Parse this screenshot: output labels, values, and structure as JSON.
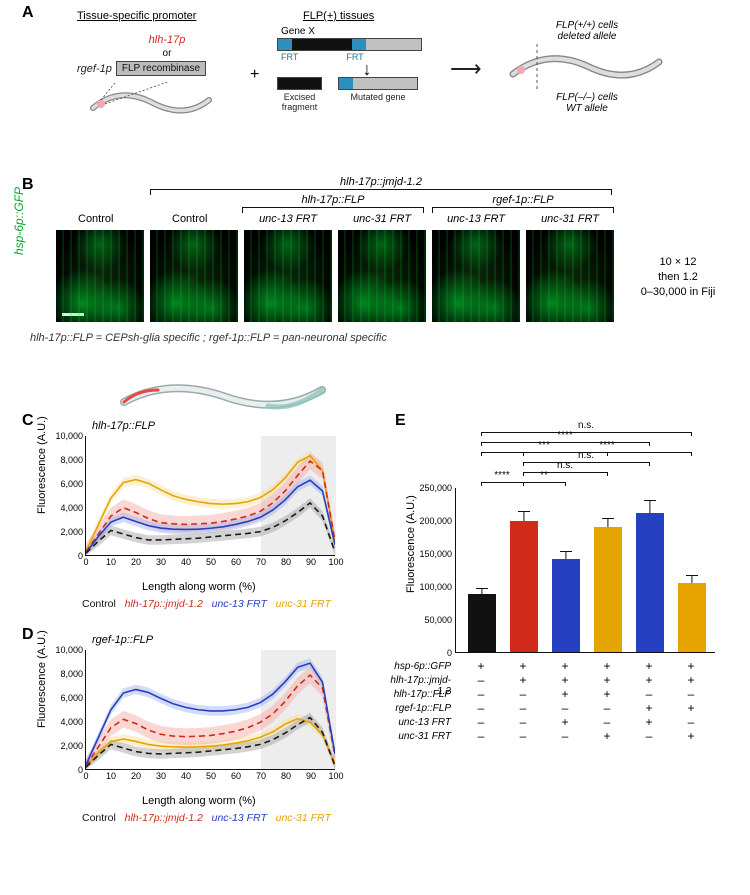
{
  "labels": {
    "A": "A",
    "B": "B",
    "C": "C",
    "D": "D",
    "E": "E"
  },
  "A": {
    "col1_heading": "Tissue-specific promoter",
    "hlh17p": "hlh-17p",
    "or": "or",
    "rgef1p": "rgef-1p",
    "flp_box": "FLP recombinase",
    "plus": "+",
    "col2_heading": "FLP(+) tissues",
    "geneX": "Gene X",
    "frt": "FRT",
    "excised": "Excised\nfragment",
    "mutated": "Mutated gene",
    "arrow": "→",
    "right_top": "FLP(+/+) cells\ndeleted allele",
    "right_bot": "FLP(–/–) cells\nWT allele"
  },
  "B": {
    "top_right_bracket_label": "hlh-17p::jmjd-1.2",
    "mid_left_bracket_label": "hlh-17p::FLP",
    "mid_right_bracket_label": "rgef-1p::FLP",
    "cols": [
      "Control",
      "Control",
      "unc-13 FRT",
      "unc-31 FRT",
      "unc-13 FRT",
      "unc-31 FRT"
    ],
    "left_green": "hsp-6p::GFP",
    "right_note_l1": "10 × 12",
    "right_note_l2": "then 1.2",
    "right_note_l3": "0–30,000 in Fiji",
    "footnote": "hlh-17p::FLP = CEPsh-glia specific  ;  rgef-1p::FLP = pan-neuronal specific"
  },
  "C": {
    "title": "hlh-17p::FLP",
    "y_label": "Fluorescence (A.U.)",
    "x_label": "Length along worm (%)",
    "ylim": [
      0,
      10000
    ],
    "ytick_step": 2000,
    "xlim": [
      0,
      100
    ],
    "xtick_step": 10,
    "shade_x": [
      70,
      100
    ],
    "legend": [
      "Control",
      "hlh-17p::jmjd-1.2",
      "unc-13 FRT",
      "unc-31 FRT"
    ],
    "series": {
      "control": {
        "color": "#1a1a1a",
        "dash": "6,4",
        "band": "#9e9e9e",
        "y": [
          200,
          1200,
          2100,
          1800,
          1500,
          1300,
          1300,
          1350,
          1400,
          1450,
          1550,
          1650,
          1750,
          1850,
          2000,
          2350,
          2900,
          3600,
          4400,
          3300,
          300
        ]
      },
      "hlh": {
        "color": "#d12a1a",
        "dash": "6,4",
        "band": "#f3a69e",
        "y": [
          300,
          1800,
          3300,
          4000,
          3600,
          3100,
          2750,
          2650,
          2600,
          2650,
          2700,
          2850,
          3050,
          3300,
          3700,
          4400,
          5400,
          6700,
          7900,
          7100,
          1200
        ]
      },
      "u13": {
        "color": "#2540c0",
        "dash": "",
        "band": "#9fb0ea",
        "y": [
          250,
          1600,
          2800,
          3200,
          2850,
          2500,
          2300,
          2200,
          2180,
          2200,
          2280,
          2400,
          2600,
          2850,
          3200,
          3800,
          4650,
          5750,
          6300,
          5400,
          900
        ]
      },
      "u31": {
        "color": "#e6a400",
        "dash": "",
        "band": "#f7dd99",
        "y": [
          350,
          2600,
          4800,
          6100,
          6350,
          6050,
          5500,
          5000,
          4700,
          4500,
          4350,
          4300,
          4350,
          4500,
          4850,
          5500,
          6500,
          7800,
          8350,
          7100,
          1200
        ]
      }
    }
  },
  "D": {
    "title": "rgef-1p::FLP",
    "y_label": "Fluorescence (A.U.)",
    "x_label": "Length along worm (%)",
    "ylim": [
      0,
      10000
    ],
    "ytick_step": 2000,
    "xlim": [
      0,
      100
    ],
    "xtick_step": 10,
    "shade_x": [
      70,
      100
    ],
    "legend": [
      "Control",
      "hlh-17p::jmjd-1.2",
      "unc-13 FRT",
      "unc-31 FRT"
    ],
    "series": {
      "control": {
        "color": "#1a1a1a",
        "dash": "6,4",
        "band": "#9e9e9e",
        "y": [
          200,
          1200,
          2100,
          1800,
          1500,
          1350,
          1300,
          1350,
          1400,
          1450,
          1550,
          1650,
          1750,
          1900,
          2100,
          2500,
          3050,
          3750,
          4350,
          3100,
          300
        ]
      },
      "hlh": {
        "color": "#d12a1a",
        "dash": "6,4",
        "band": "#f3a69e",
        "y": [
          300,
          1900,
          3500,
          4200,
          3850,
          3300,
          2950,
          2800,
          2750,
          2780,
          2850,
          3000,
          3200,
          3500,
          3950,
          4650,
          5700,
          7000,
          7900,
          6800,
          1100
        ]
      },
      "u13": {
        "color": "#2540c0",
        "dash": "",
        "band": "#9fb0ea",
        "y": [
          400,
          2700,
          5000,
          6400,
          6700,
          6450,
          5950,
          5500,
          5200,
          5000,
          4900,
          4900,
          5000,
          5200,
          5600,
          6300,
          7350,
          8550,
          8900,
          7300,
          1300
        ]
      },
      "u31": {
        "color": "#e6a400",
        "dash": "",
        "band": "#f7dd99",
        "y": [
          250,
          1400,
          2350,
          2550,
          2350,
          2100,
          1950,
          1900,
          1880,
          1900,
          1950,
          2050,
          2200,
          2400,
          2700,
          3150,
          3800,
          4250,
          3950,
          2900,
          500
        ]
      }
    }
  },
  "E": {
    "y_label": "Fluorescence (A.U.)",
    "ylim": [
      0,
      250000
    ],
    "ytick_step": 50000,
    "bars": [
      {
        "name": "ctrl",
        "value": 88000,
        "err": 9000,
        "color": "#111111"
      },
      {
        "name": "hlh",
        "value": 199000,
        "err": 14000,
        "color": "#d12a1a"
      },
      {
        "name": "u13h",
        "value": 141000,
        "err": 12000,
        "color": "#2540c0"
      },
      {
        "name": "u31h",
        "value": 190000,
        "err": 13000,
        "color": "#e6a400"
      },
      {
        "name": "u13r",
        "value": 210000,
        "err": 20000,
        "color": "#2540c0"
      },
      {
        "name": "u31r",
        "value": 105000,
        "err": 11000,
        "color": "#e6a400"
      }
    ],
    "sig": [
      {
        "from": 0,
        "to": 1,
        "text": "****",
        "level": 1
      },
      {
        "from": 1,
        "to": 2,
        "text": "**",
        "level": 1
      },
      {
        "from": 1,
        "to": 3,
        "text": "n.s.",
        "level": 2
      },
      {
        "from": 1,
        "to": 4,
        "text": "n.s.",
        "level": 3
      },
      {
        "from": 0,
        "to": 3,
        "text": "***",
        "level": 4
      },
      {
        "from": 1,
        "to": 5,
        "text": "****",
        "level": 4
      },
      {
        "from": 0,
        "to": 4,
        "text": "****",
        "level": 5
      },
      {
        "from": 0,
        "to": 5,
        "text": "n.s.",
        "level": 6
      }
    ],
    "rows": [
      {
        "label": "hsp-6p::GFP",
        "vals": [
          "+",
          "+",
          "+",
          "+",
          "+",
          "+"
        ]
      },
      {
        "label": "hlh-17p::jmjd-1.2",
        "vals": [
          "–",
          "+",
          "+",
          "+",
          "+",
          "+"
        ]
      },
      {
        "label": "hlh-17p::FLP",
        "vals": [
          "–",
          "–",
          "+",
          "+",
          "–",
          "–"
        ]
      },
      {
        "label": "rgef-1p::FLP",
        "vals": [
          "–",
          "–",
          "–",
          "–",
          "+",
          "+"
        ]
      },
      {
        "label": "unc-13 FRT",
        "vals": [
          "–",
          "–",
          "+",
          "–",
          "+",
          "–"
        ]
      },
      {
        "label": "unc-31 FRT",
        "vals": [
          "–",
          "–",
          "–",
          "+",
          "–",
          "+"
        ]
      }
    ]
  }
}
